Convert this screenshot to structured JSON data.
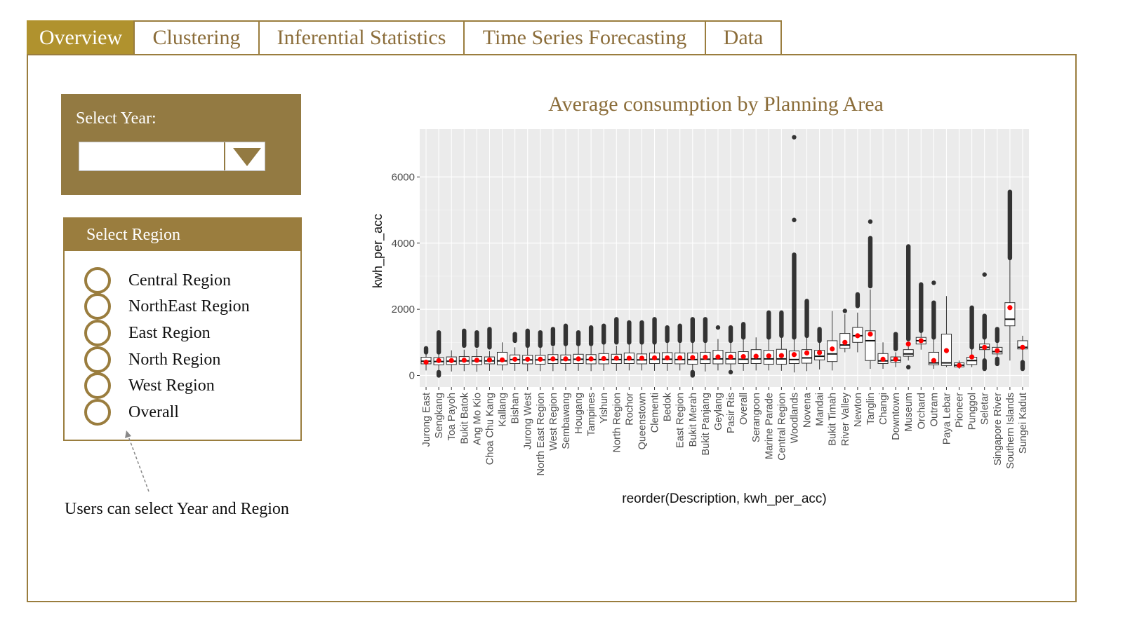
{
  "tabs": [
    {
      "label": "Overview",
      "active": true
    },
    {
      "label": "Clustering",
      "active": false
    },
    {
      "label": "Inferential Statistics",
      "active": false
    },
    {
      "label": "Time Series Forecasting",
      "active": false
    },
    {
      "label": "Data",
      "active": false
    }
  ],
  "sidebar": {
    "year_label": "Select Year:",
    "year_value": "",
    "region_header": "Select Region",
    "regions": [
      "Central Region",
      "NorthEast Region",
      "East Region",
      "North Region",
      "West Region",
      "Overall"
    ],
    "note": "Users can select Year and Region"
  },
  "chart_title": "Average consumption by Planning Area",
  "chart_data": {
    "type": "box",
    "title": "Average consumption by Planning Area",
    "xlabel": "reorder(Description, kwh_per_acc)",
    "ylabel": "kwh_per_acc",
    "ylim": [
      -350,
      7450
    ],
    "yticks": [
      0,
      2000,
      4000,
      6000
    ],
    "grid": true,
    "colors": {
      "panel": "#ebebeb",
      "box": "#ffffff",
      "outlier": "#333333",
      "mean": "#ff0000"
    },
    "categories": [
      "Jurong East",
      "Sengkang",
      "Toa Payoh",
      "Bukit Batok",
      "Ang Mo Kio",
      "Choa Chu Kang",
      "Kallang",
      "Bishan",
      "Jurong West",
      "North East Region",
      "West Region",
      "Sembawang",
      "Hougang",
      "Tampines",
      "Yishun",
      "North Region",
      "Rochor",
      "Queenstown",
      "Clementi",
      "Bedok",
      "East Region",
      "Bukit Merah",
      "Bukit Panjang",
      "Geylang",
      "Pasir Ris",
      "Overall",
      "Serangoon",
      "Marine Parade",
      "Central Region",
      "Woodlands",
      "Novena",
      "Mandai",
      "Bukit Timah",
      "River Valley",
      "Newton",
      "Tanglin",
      "Changi",
      "Downtown",
      "Museum",
      "Orchard",
      "Outram",
      "Paya Lebar",
      "Pioneer",
      "Punggol",
      "Seletar",
      "Singapore River",
      "Southern Islands",
      "Sungei Kadut"
    ],
    "boxes": [
      [
        150,
        350,
        430,
        550,
        700,
        850,
        400
      ],
      [
        100,
        320,
        420,
        540,
        720,
        1300,
        450
      ],
      [
        120,
        330,
        430,
        560,
        760,
        1050,
        450
      ],
      [
        130,
        340,
        440,
        570,
        780,
        1350,
        460
      ],
      [
        110,
        330,
        440,
        570,
        800,
        1300,
        460
      ],
      [
        140,
        350,
        440,
        560,
        740,
        1400,
        470
      ],
      [
        150,
        320,
        440,
        700,
        1000,
        1100,
        470
      ],
      [
        140,
        360,
        480,
        620,
        850,
        1250,
        490
      ],
      [
        130,
        350,
        470,
        610,
        830,
        1350,
        490
      ],
      [
        130,
        340,
        470,
        610,
        840,
        1300,
        490
      ],
      [
        130,
        360,
        480,
        630,
        870,
        1400,
        500
      ],
      [
        140,
        360,
        470,
        620,
        900,
        1500,
        500
      ],
      [
        140,
        360,
        490,
        640,
        880,
        1300,
        500
      ],
      [
        130,
        350,
        480,
        630,
        880,
        1450,
        500
      ],
      [
        140,
        350,
        480,
        660,
        950,
        1500,
        510
      ],
      [
        140,
        360,
        480,
        640,
        900,
        1700,
        520
      ],
      [
        150,
        360,
        480,
        680,
        950,
        1600,
        520
      ],
      [
        150,
        350,
        470,
        650,
        950,
        1600,
        520
      ],
      [
        140,
        360,
        490,
        680,
        960,
        1700,
        530
      ],
      [
        140,
        360,
        490,
        690,
        1000,
        1450,
        530
      ],
      [
        150,
        350,
        480,
        680,
        980,
        1500,
        530
      ],
      [
        100,
        340,
        480,
        680,
        1000,
        1700,
        540
      ],
      [
        120,
        360,
        490,
        700,
        1000,
        1700,
        550
      ],
      [
        150,
        350,
        500,
        760,
        1100,
        1400,
        560
      ],
      [
        120,
        350,
        500,
        700,
        1000,
        1450,
        560
      ],
      [
        140,
        360,
        490,
        720,
        1100,
        1550,
        570
      ],
      [
        150,
        360,
        500,
        780,
        1150,
        1200,
        580
      ],
      [
        150,
        340,
        500,
        760,
        1120,
        1900,
        590
      ],
      [
        140,
        340,
        500,
        790,
        1150,
        1900,
        600
      ],
      [
        90,
        360,
        480,
        740,
        1100,
        7200,
        630
      ],
      [
        130,
        370,
        530,
        780,
        1150,
        2250,
        680
      ],
      [
        180,
        470,
        580,
        760,
        1000,
        1400,
        690
      ],
      [
        150,
        420,
        650,
        1050,
        1950,
        1950,
        800
      ],
      [
        700,
        820,
        920,
        1270,
        1850,
        2000,
        1000
      ],
      [
        700,
        1000,
        1200,
        1450,
        1900,
        2450,
        1200
      ],
      [
        200,
        450,
        1050,
        1350,
        2600,
        4650,
        1250
      ],
      [
        200,
        360,
        440,
        660,
        1000,
        1000,
        490
      ],
      [
        250,
        400,
        460,
        560,
        700,
        1250,
        490
      ],
      [
        450,
        580,
        650,
        780,
        1000,
        3900,
        950
      ],
      [
        780,
        950,
        1050,
        1150,
        1300,
        2750,
        1050
      ],
      [
        200,
        320,
        380,
        700,
        1100,
        2800,
        450
      ],
      [
        250,
        300,
        380,
        1250,
        2400,
        2400,
        750
      ],
      [
        200,
        260,
        310,
        380,
        450,
        450,
        300
      ],
      [
        250,
        330,
        450,
        550,
        800,
        2050,
        560
      ],
      [
        450,
        780,
        850,
        950,
        1150,
        3050,
        850
      ],
      [
        500,
        650,
        720,
        850,
        1000,
        1400,
        750
      ],
      [
        450,
        1500,
        1700,
        2200,
        3500,
        5550,
        2050
      ],
      [
        200,
        800,
        850,
        1050,
        1200,
        1250,
        850
      ]
    ],
    "outlier_ranges": [
      [
        [
          700,
          820
        ]
      ],
      [
        [
          700,
          1300
        ],
        [
          0,
          100
        ]
      ],
      [],
      [
        [
          900,
          1350
        ]
      ],
      [
        [
          900,
          1300
        ]
      ],
      [
        [
          850,
          1400
        ]
      ],
      [],
      [
        [
          1050,
          1250
        ]
      ],
      [
        [
          900,
          1350
        ]
      ],
      [
        [
          900,
          1300
        ]
      ],
      [
        [
          950,
          1400
        ]
      ],
      [
        [
          950,
          1500
        ]
      ],
      [
        [
          950,
          1300
        ]
      ],
      [
        [
          950,
          1450
        ]
      ],
      [
        [
          1000,
          1500
        ]
      ],
      [
        [
          1000,
          1700
        ]
      ],
      [
        [
          1000,
          1600
        ]
      ],
      [
        [
          1000,
          1600
        ]
      ],
      [
        [
          1000,
          1700
        ]
      ],
      [
        [
          1050,
          1450
        ]
      ],
      [
        [
          1050,
          1500
        ]
      ],
      [
        [
          1050,
          1700
        ],
        [
          0,
          100
        ]
      ],
      [
        [
          1050,
          1700
        ]
      ],
      [
        [
          1450,
          1450
        ]
      ],
      [
        [
          1050,
          1450
        ],
        [
          100,
          150
        ]
      ],
      [
        [
          1150,
          1550
        ]
      ],
      [],
      [
        [
          1150,
          1900
        ]
      ],
      [
        [
          1200,
          1900
        ]
      ],
      [
        [
          1150,
          3650
        ],
        [
          4700,
          4700
        ],
        [
          7200,
          7200
        ]
      ],
      [
        [
          1200,
          2250
        ]
      ],
      [
        [
          1050,
          1400
        ]
      ],
      [],
      [
        [
          1950,
          2000
        ]
      ],
      [
        [
          2100,
          2450
        ]
      ],
      [
        [
          2700,
          4150
        ],
        [
          4650,
          4650
        ]
      ],
      [],
      [
        [
          800,
          1250
        ]
      ],
      [
        [
          1100,
          3900
        ],
        [
          250,
          300
        ]
      ],
      [
        [
          1350,
          2750
        ]
      ],
      [
        [
          1150,
          2200
        ],
        [
          2800,
          2800
        ]
      ],
      [],
      [],
      [
        [
          850,
          2050
        ]
      ],
      [
        [
          1150,
          1800
        ],
        [
          200,
          450
        ],
        [
          3050,
          3050
        ]
      ],
      [
        [
          1050,
          1400
        ],
        [
          350,
          500
        ]
      ],
      [
        [
          3550,
          5550
        ]
      ],
      [
        [
          200,
          400
        ]
      ]
    ]
  }
}
